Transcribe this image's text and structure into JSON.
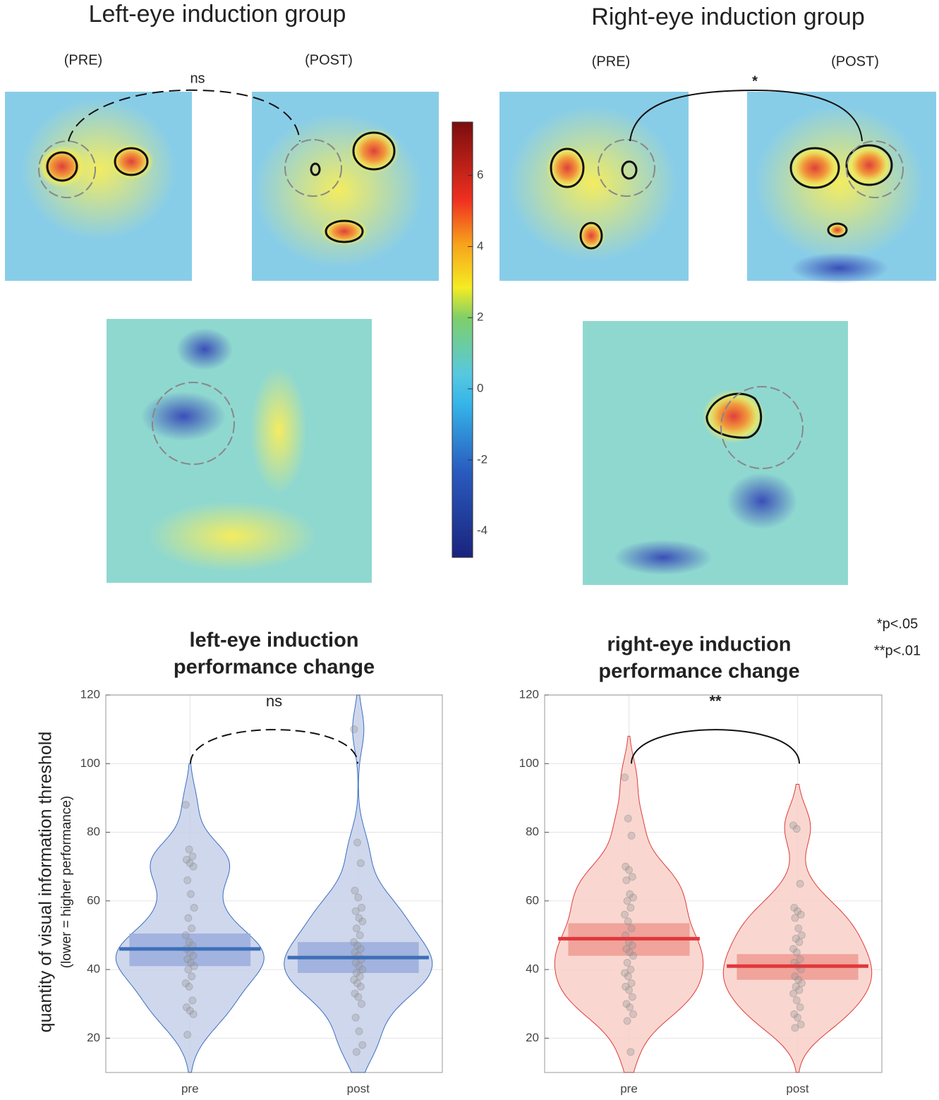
{
  "heatmaps": {
    "left_title": "Left-eye induction group",
    "right_title": "Right-eye induction group",
    "left_pre": "(PRE)",
    "left_post": "(POST)",
    "right_pre": "(PRE)",
    "right_post": "(POST)",
    "left_sig": "ns",
    "right_sig": "*"
  },
  "colorbar": {
    "lim": [
      -4.74,
      7.5
    ],
    "ticks": [
      -4,
      -2,
      0,
      2,
      4,
      6
    ]
  },
  "notes": [
    "*p<.05",
    "**p<.01"
  ],
  "chart_data": [
    {
      "type": "violin",
      "title": [
        "left-eye induction",
        "performance change"
      ],
      "ylabel": "quantity of visual information threshold",
      "ylabel_sub": "(lower = higher performance)",
      "categories": [
        "pre",
        "post"
      ],
      "ylim": [
        10,
        120
      ],
      "yticks": [
        20,
        40,
        60,
        80,
        100,
        120
      ],
      "grid": true,
      "fill": "#c7d0ea",
      "stroke": "#3a6fc0",
      "box_color": "#9aaddc",
      "mean_color": "#3d6fb8",
      "means": [
        46,
        43.5
      ],
      "box": [
        [
          41,
          50.5
        ],
        [
          39,
          48
        ]
      ],
      "sig": "ns",
      "sig_dashed": true,
      "points": [
        [
          88,
          75,
          73,
          72,
          71,
          70,
          66,
          62,
          58,
          55,
          52,
          50,
          48,
          47,
          46,
          45,
          44,
          43,
          42,
          41,
          40,
          38,
          36,
          35,
          31,
          29,
          28,
          27,
          21
        ],
        [
          110,
          77,
          71,
          63,
          61,
          58,
          57,
          55,
          54,
          52,
          50,
          48,
          47,
          46,
          45,
          44,
          43,
          42,
          41,
          40,
          39,
          38,
          37,
          36,
          35,
          33,
          32,
          30,
          26,
          22,
          18,
          16
        ]
      ]
    },
    {
      "type": "violin",
      "title": [
        "right-eye induction",
        "performance change"
      ],
      "categories": [
        "pre",
        "post"
      ],
      "ylim": [
        10,
        120
      ],
      "yticks": [
        20,
        40,
        60,
        80,
        100,
        120
      ],
      "grid": true,
      "fill": "#f8d0c8",
      "stroke": "#e03a3a",
      "box_color": "#ef9b92",
      "mean_color": "#e0383c",
      "means": [
        49,
        41
      ],
      "box": [
        [
          44,
          53.5
        ],
        [
          37,
          44.5
        ]
      ],
      "sig": "**",
      "sig_dashed": false,
      "points": [
        [
          96,
          84,
          79,
          70,
          69,
          67,
          66,
          62,
          61,
          60,
          58,
          56,
          54,
          52,
          50,
          48,
          47,
          46,
          45,
          44,
          42,
          40,
          39,
          38,
          36,
          35,
          34,
          32,
          30,
          29,
          27,
          25,
          16
        ],
        [
          82,
          81,
          65,
          58,
          57,
          56,
          55,
          52,
          50,
          49,
          48,
          46,
          45,
          43,
          42,
          41,
          40,
          38,
          37,
          36,
          35,
          34,
          33,
          31,
          29,
          27,
          26,
          24,
          23
        ]
      ]
    }
  ]
}
